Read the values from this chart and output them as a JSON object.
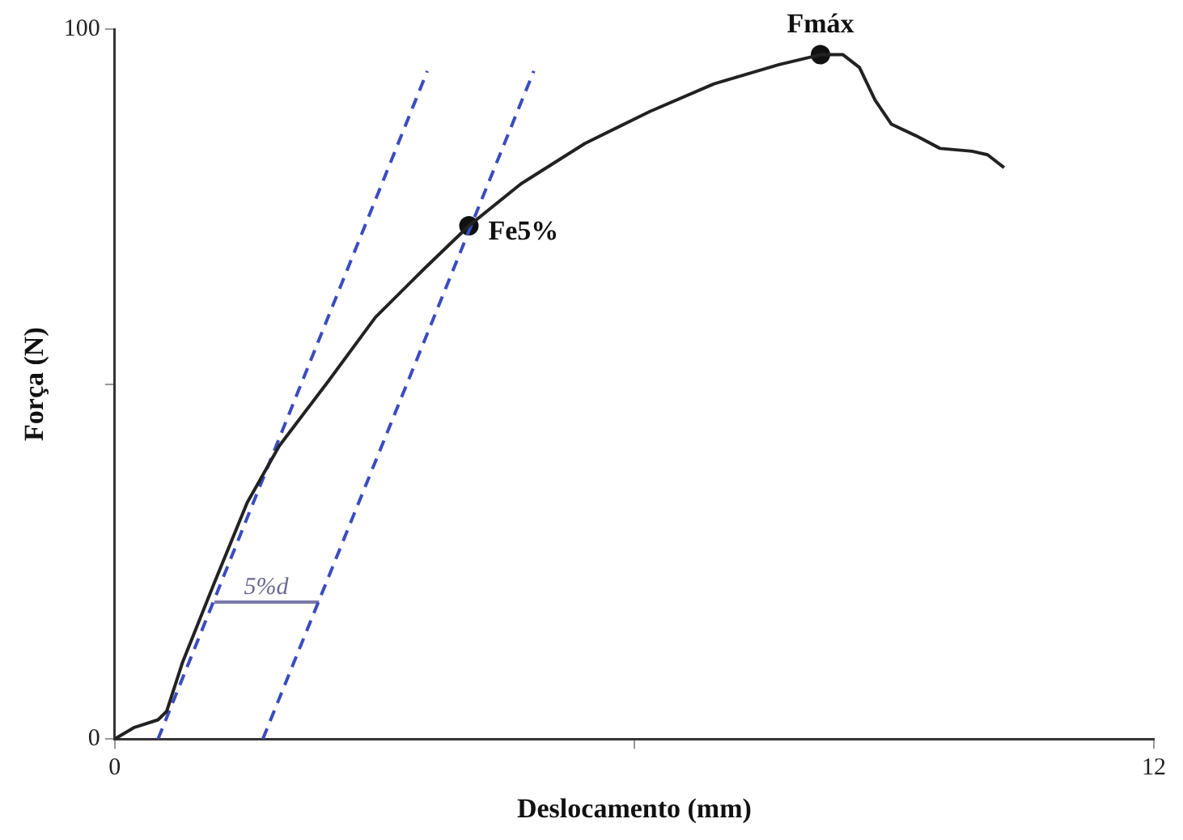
{
  "chart_data": {
    "type": "line",
    "xlabel": "Deslocamento (mm)",
    "ylabel": "Força (N)",
    "xlim": [
      0,
      12
    ],
    "xticks": [
      0,
      {
        "value": 6,
        "label": null
      },
      12
    ],
    "ylim": [
      0,
      100
    ],
    "yticks": [
      0,
      {
        "value": 50,
        "label": null
      },
      100
    ],
    "grid": false,
    "legend": false,
    "series": [
      {
        "type": "line",
        "color": "#222222",
        "marker": "none",
        "line_style": "solid",
        "x": [
          0,
          0.22,
          0.5,
          0.6,
          0.78,
          1.15,
          1.53,
          1.9,
          2.46,
          3.01,
          3.57,
          4.09,
          4.69,
          5.43,
          6.18,
          6.92,
          7.67,
          8.15,
          8.41,
          8.6,
          8.78,
          8.97,
          9.25,
          9.53,
          9.9,
          10.08,
          10.27
        ],
        "values": [
          0,
          1.6,
          2.7,
          3.9,
          10.7,
          22,
          33.3,
          41.3,
          50.3,
          59.4,
          66.2,
          72.3,
          78.2,
          83.9,
          88.4,
          92.3,
          95,
          96.4,
          96.4,
          94.6,
          90,
          86.6,
          85,
          83.2,
          82.8,
          82.3,
          80.5
        ]
      },
      {
        "type": "line",
        "color": "#3b4cc0",
        "marker": "none",
        "line_style": "dashed",
        "x": [
          0.5,
          3.61
        ],
        "values": [
          0,
          94.1
        ]
      },
      {
        "type": "line",
        "color": "#3b4cc0",
        "marker": "none",
        "line_style": "dashed",
        "x": [
          1.71,
          4.84
        ],
        "values": [
          0,
          94.1
        ]
      },
      {
        "type": "line",
        "color": "#7a7aa8",
        "marker": "none",
        "line_style": "solid",
        "x": [
          1.15,
          2.36
        ],
        "values": [
          19.3,
          19.3
        ]
      },
      {
        "type": "scatter",
        "color": "#111111",
        "marker": "circle",
        "x": [
          4.09,
          8.15
        ],
        "values": [
          72.3,
          96.4
        ]
      }
    ],
    "annotations": [
      {
        "text": "Fe5%",
        "x": 4.09,
        "y": 72.3
      },
      {
        "text": "Fmáx",
        "x": 8.15,
        "y": 96.4
      },
      {
        "text": "5%d",
        "x": 1.75,
        "y": 19.3
      }
    ]
  }
}
